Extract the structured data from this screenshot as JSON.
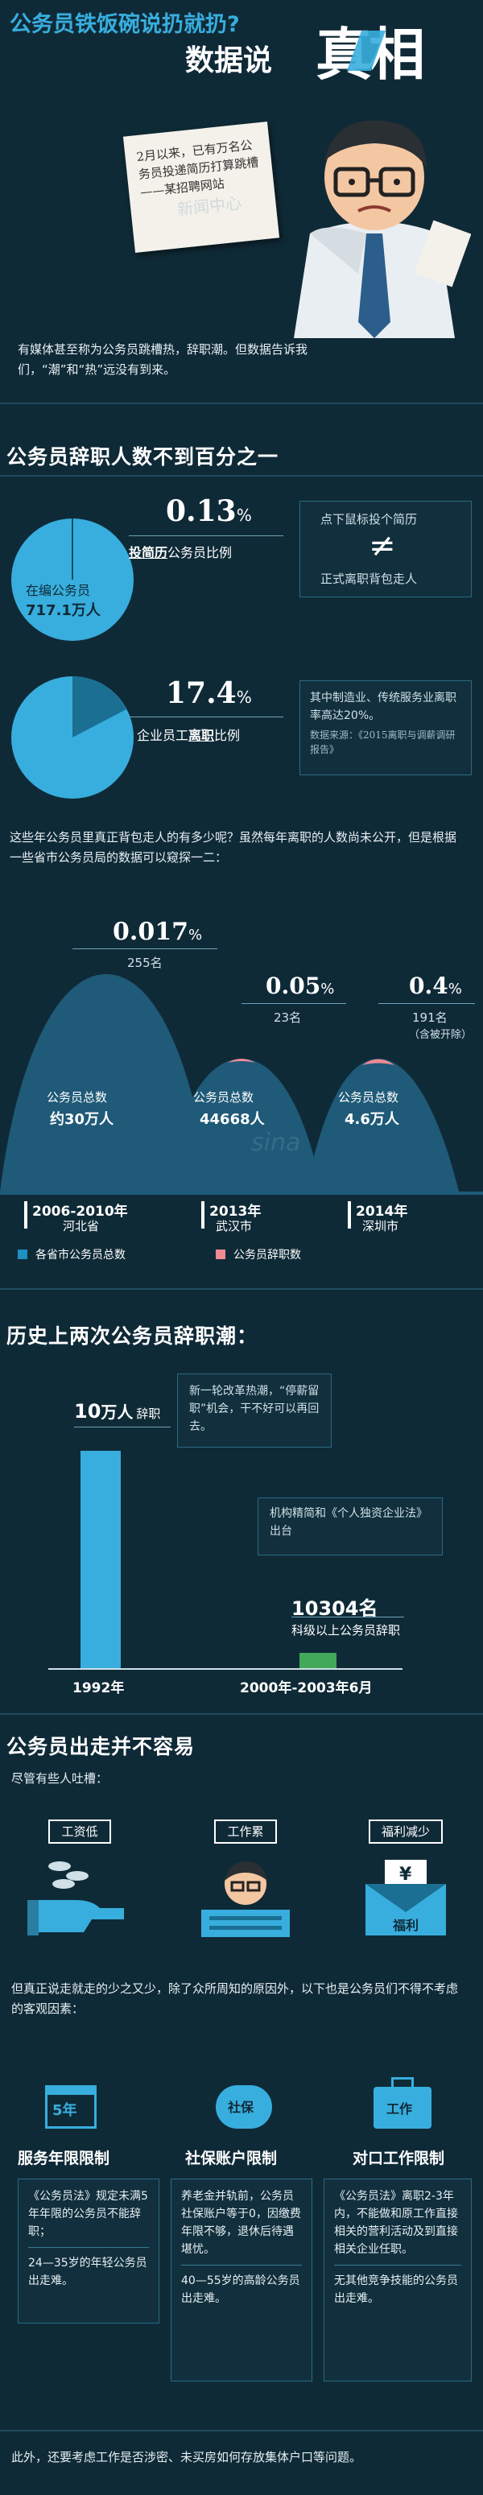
{
  "header": {
    "title_line1": "公务员铁饭碗说扔就扔?",
    "title_line2_prefix": "数据说",
    "title_big": "真相",
    "note_text": "2月以来，已有万名公务员投递简历打算跳槽——某招聘网站",
    "watermark": "新闻中心"
  },
  "intro": {
    "text": "有媒体甚至称为公务员跳槽热，辞职潮。但数据告诉我们，“潮”和“热”远没有到来。"
  },
  "section1": {
    "title": "公务员辞职人数不到百分之一",
    "circle1_label1": "在编公务员",
    "circle1_label2": "717.1万人",
    "stat1_value": "0.13",
    "stat1_unit": "%",
    "stat1_desc_a": "投简历",
    "stat1_desc_b": "公务员比例",
    "box1_text_a": "点下鼠标投个简历",
    "box1_symbol": "≠",
    "box1_text_b": "正式离职背包走人",
    "stat2_value": "17.4",
    "stat2_unit": "%",
    "stat2_desc_a": "企业员工",
    "stat2_desc_b": "离职",
    "stat2_desc_c": "比例",
    "box2_text": "其中制造业、传统服务业离职率高达20%。",
    "box2_source": "数据来源：《2015离职与调薪调研报告》",
    "chart_text": "这些年公务员里真正背包走人的有多少呢？虽然每年离职的人数尚未公开，但是根据一些省市公务员局的数据可以窥探一二："
  },
  "mountain_chart": {
    "peaks": [
      {
        "pct": "0.017",
        "unit": "%",
        "count": "255名",
        "note": "",
        "total_label": "公务员总数",
        "total": "约30万人",
        "years": "2006-2010年",
        "place": "河北省"
      },
      {
        "pct": "0.05",
        "unit": "%",
        "count": "23名",
        "note": "",
        "total_label": "公务员总数",
        "total": "44668人",
        "years": "2013年",
        "place": "武汉市"
      },
      {
        "pct": "0.4",
        "unit": "%",
        "count": "191名",
        "note": "（含被开除）",
        "total_label": "公务员总数",
        "total": "4.6万人",
        "years": "2014年",
        "place": "深圳市"
      }
    ],
    "legend_total": "各省市公务员总数",
    "legend_resign": "公务员辞职数",
    "colors": {
      "total": "#1f5a78",
      "resign": "#f08a93"
    },
    "watermark": "sina"
  },
  "section2": {
    "title": "历史上两次公务员辞职潮：",
    "bar1_value": "10",
    "bar1_unit": "万人",
    "bar1_desc": "辞职",
    "bar1_label": "1992年",
    "bar1_note": "新一轮改革热潮，“停薪留职”机会，干不好可以再回去。",
    "bar2_note": "机构精简和《个人独资企业法》出台",
    "bar2_value": "10304名",
    "bar2_desc": "科级以上公务员辞职",
    "bar2_label": "2000年-2003年6月",
    "colors": {
      "bar1": "#38aede",
      "bar2": "#42a85a"
    },
    "bars_data": {
      "type": "bar",
      "categories": [
        "1992年",
        "2000年-2003年6月"
      ],
      "values": [
        100000,
        10304
      ]
    }
  },
  "section3": {
    "title": "公务员出走并不容易",
    "subtitle": "尽管有些人吐槽：",
    "complaints": [
      {
        "label": "工资低",
        "icon": "coins-hand-icon"
      },
      {
        "label": "工作累",
        "icon": "tired-worker-icon"
      },
      {
        "label": "福利减少",
        "icon": "benefit-envelope-icon",
        "envelope_text": "福利",
        "yen": "¥"
      }
    ],
    "intro2": "但真正说走就走的少之又少，除了众所周知的原因外，以下也是公务员们不得不考虑的客观因素：",
    "factors": [
      {
        "icon_text": "5年",
        "title": "服务年限限制",
        "para1": "《公务员法》规定未满5年年限的公务员不能辞职；",
        "para2": "24—35岁的年轻公务员出走难。"
      },
      {
        "icon_text": "社保",
        "title": "社保账户限制",
        "para1": "养老金并轨前，公务员社保账户等于0，因缴费年限不够，退休后待遇堪忧。",
        "para2": "40—55岁的高龄公务员出走难。"
      },
      {
        "icon_text": "工作",
        "title": "对口工作限制",
        "para1": "《公务员法》离职2-3年内，不能做和原工作直接相关的营利活动及到直接相关企业任职。",
        "para2": "无其他竞争技能的公务员出走难。"
      }
    ],
    "footer": "此外，还要考虑工作是否涉密、未买房如何存放集体户口等问题。"
  }
}
